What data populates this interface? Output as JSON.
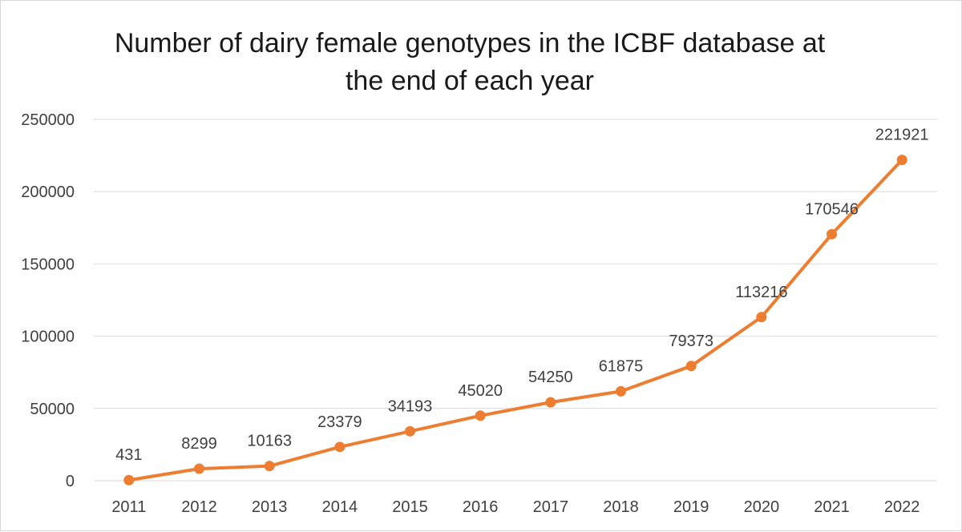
{
  "chart_data": {
    "type": "line",
    "title_lines": [
      "Number of dairy female genotypes in the ICBF database at",
      "the end of each year"
    ],
    "categories": [
      "2011",
      "2012",
      "2013",
      "2014",
      "2015",
      "2016",
      "2017",
      "2018",
      "2019",
      "2020",
      "2021",
      "2022"
    ],
    "series": [
      {
        "values": [
          431,
          8299,
          10163,
          23379,
          34193,
          45020,
          54250,
          61875,
          79373,
          113216,
          170546,
          221921
        ]
      }
    ],
    "ylim": [
      0,
      250000
    ],
    "yticks": [
      0,
      50000,
      100000,
      150000,
      200000,
      250000
    ],
    "grid": true,
    "data_labels": true,
    "legend": "none",
    "colors": {
      "series": "#ed7d31",
      "grid": "#d9d9d9",
      "text": "#404040"
    }
  }
}
